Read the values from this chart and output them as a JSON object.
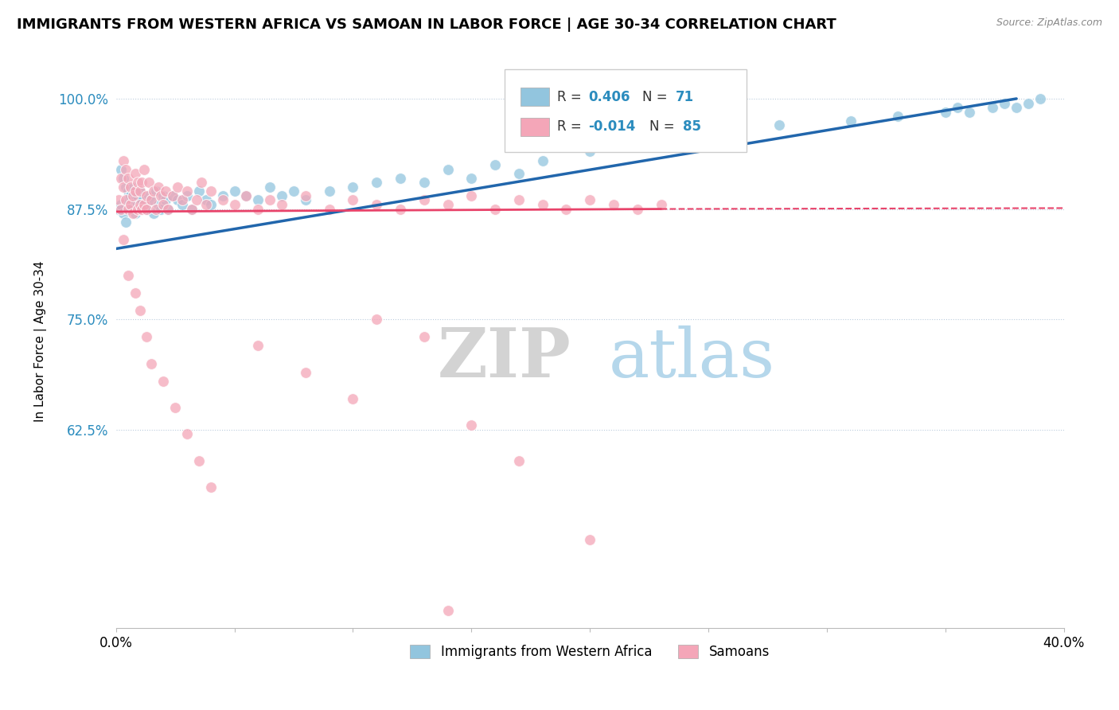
{
  "title": "IMMIGRANTS FROM WESTERN AFRICA VS SAMOAN IN LABOR FORCE | AGE 30-34 CORRELATION CHART",
  "source": "Source: ZipAtlas.com",
  "ylabel": "In Labor Force | Age 30-34",
  "xlim": [
    0.0,
    0.4
  ],
  "ylim": [
    0.4,
    1.05
  ],
  "yticks": [
    0.625,
    0.75,
    0.875,
    1.0
  ],
  "ytick_labels": [
    "62.5%",
    "75.0%",
    "87.5%",
    "100.0%"
  ],
  "xticks": [
    0.0,
    0.05,
    0.1,
    0.15,
    0.2,
    0.25,
    0.3,
    0.35,
    0.4
  ],
  "xtick_labels": [
    "0.0%",
    "",
    "",
    "",
    "",
    "",
    "",
    "",
    "40.0%"
  ],
  "blue_color": "#92c5de",
  "pink_color": "#f4a6b8",
  "trend_blue": "#2166ac",
  "trend_pink": "#e8436a",
  "legend_R_blue": "0.406",
  "legend_N_blue": "71",
  "legend_R_pink": "-0.014",
  "legend_N_pink": "85",
  "legend_label_blue": "Immigrants from Western Africa",
  "legend_label_pink": "Samoans",
  "watermark_zip": "ZIP",
  "watermark_atlas": "atlas",
  "blue_x": [
    0.001,
    0.002,
    0.002,
    0.003,
    0.003,
    0.004,
    0.004,
    0.005,
    0.005,
    0.006,
    0.006,
    0.007,
    0.007,
    0.008,
    0.008,
    0.009,
    0.009,
    0.01,
    0.01,
    0.011,
    0.012,
    0.013,
    0.014,
    0.015,
    0.016,
    0.017,
    0.018,
    0.019,
    0.02,
    0.021,
    0.022,
    0.024,
    0.026,
    0.028,
    0.03,
    0.032,
    0.035,
    0.038,
    0.04,
    0.045,
    0.05,
    0.055,
    0.06,
    0.065,
    0.07,
    0.075,
    0.08,
    0.09,
    0.1,
    0.11,
    0.12,
    0.13,
    0.14,
    0.15,
    0.16,
    0.17,
    0.18,
    0.2,
    0.22,
    0.25,
    0.28,
    0.31,
    0.33,
    0.35,
    0.355,
    0.36,
    0.37,
    0.375,
    0.38,
    0.385,
    0.39
  ],
  "blue_y": [
    0.875,
    0.88,
    0.92,
    0.87,
    0.91,
    0.86,
    0.9,
    0.885,
    0.895,
    0.875,
    0.89,
    0.88,
    0.9,
    0.885,
    0.87,
    0.89,
    0.88,
    0.875,
    0.895,
    0.885,
    0.88,
    0.875,
    0.89,
    0.885,
    0.87,
    0.895,
    0.88,
    0.875,
    0.89,
    0.885,
    0.875,
    0.89,
    0.885,
    0.88,
    0.89,
    0.875,
    0.895,
    0.885,
    0.88,
    0.89,
    0.895,
    0.89,
    0.885,
    0.9,
    0.89,
    0.895,
    0.885,
    0.895,
    0.9,
    0.905,
    0.91,
    0.905,
    0.92,
    0.91,
    0.925,
    0.915,
    0.93,
    0.94,
    0.95,
    0.96,
    0.97,
    0.975,
    0.98,
    0.985,
    0.99,
    0.985,
    0.99,
    0.995,
    0.99,
    0.995,
    1.0
  ],
  "pink_x": [
    0.001,
    0.002,
    0.002,
    0.003,
    0.003,
    0.004,
    0.004,
    0.005,
    0.005,
    0.006,
    0.006,
    0.007,
    0.007,
    0.008,
    0.008,
    0.009,
    0.009,
    0.01,
    0.01,
    0.011,
    0.011,
    0.012,
    0.012,
    0.013,
    0.013,
    0.014,
    0.015,
    0.016,
    0.017,
    0.018,
    0.019,
    0.02,
    0.021,
    0.022,
    0.024,
    0.026,
    0.028,
    0.03,
    0.032,
    0.034,
    0.036,
    0.038,
    0.04,
    0.045,
    0.05,
    0.055,
    0.06,
    0.065,
    0.07,
    0.08,
    0.09,
    0.1,
    0.11,
    0.12,
    0.13,
    0.14,
    0.15,
    0.16,
    0.17,
    0.18,
    0.19,
    0.2,
    0.21,
    0.22,
    0.23,
    0.003,
    0.005,
    0.008,
    0.01,
    0.013,
    0.015,
    0.02,
    0.025,
    0.03,
    0.035,
    0.04,
    0.06,
    0.08,
    0.1,
    0.17,
    0.11,
    0.13,
    0.2,
    0.15,
    0.14
  ],
  "pink_y": [
    0.885,
    0.91,
    0.875,
    0.9,
    0.93,
    0.885,
    0.92,
    0.875,
    0.91,
    0.88,
    0.9,
    0.89,
    0.87,
    0.895,
    0.915,
    0.875,
    0.905,
    0.88,
    0.895,
    0.875,
    0.905,
    0.88,
    0.92,
    0.89,
    0.875,
    0.905,
    0.885,
    0.895,
    0.875,
    0.9,
    0.89,
    0.88,
    0.895,
    0.875,
    0.89,
    0.9,
    0.885,
    0.895,
    0.875,
    0.885,
    0.905,
    0.88,
    0.895,
    0.885,
    0.88,
    0.89,
    0.875,
    0.885,
    0.88,
    0.89,
    0.875,
    0.885,
    0.88,
    0.875,
    0.885,
    0.88,
    0.89,
    0.875,
    0.885,
    0.88,
    0.875,
    0.885,
    0.88,
    0.875,
    0.88,
    0.84,
    0.8,
    0.78,
    0.76,
    0.73,
    0.7,
    0.68,
    0.65,
    0.62,
    0.59,
    0.56,
    0.72,
    0.69,
    0.66,
    0.59,
    0.75,
    0.73,
    0.5,
    0.63,
    0.42
  ],
  "trend_blue_x0": 0.0,
  "trend_blue_y0": 0.83,
  "trend_blue_x1": 0.38,
  "trend_blue_y1": 1.0,
  "trend_pink_x0": 0.0,
  "trend_pink_y0": 0.872,
  "trend_pink_x1": 0.23,
  "trend_pink_y1": 0.875,
  "trend_pink_dash_x0": 0.23,
  "trend_pink_dash_y0": 0.875,
  "trend_pink_dash_x1": 0.4,
  "trend_pink_dash_y1": 0.876
}
